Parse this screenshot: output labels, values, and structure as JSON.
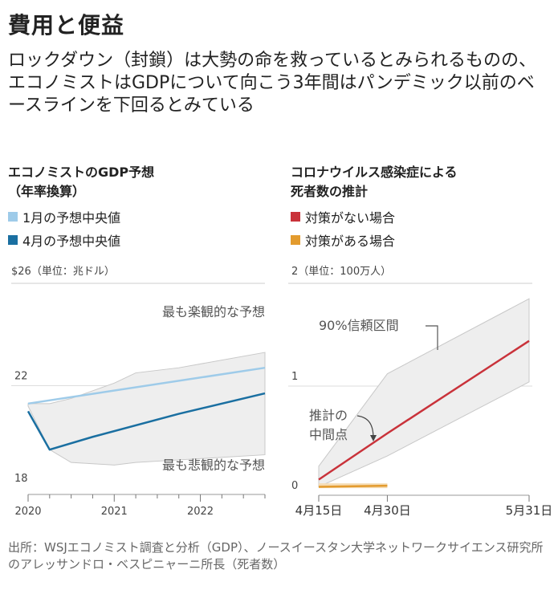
{
  "title": "費用と便益",
  "subtitle": "ロックダウン（封鎖）は大勢の命を救っているとみられるものの、エコノミストはGDPについて向こう3年間はパンデミック以前のベースラインを下回るとみている",
  "source": "出所：WSJエコノミスト調査と分析（GDP）、ノースイースタン大学ネットワークサイエンス研究所のアレッサンドロ・ベスピニャーニ所長（死者数）",
  "left": {
    "title_line1": "エコノミストのGDP予想",
    "title_line2": "（年率換算）",
    "legend": [
      {
        "label": "1月の予想中央値",
        "color": "#9ecbe9"
      },
      {
        "label": "4月の予想中央値",
        "color": "#1a6fa1"
      }
    ],
    "y_top_label": "$26（単位：兆ドル）",
    "annotation_high": "最も楽観的な予想",
    "annotation_low": "最も悲観的な予想"
  },
  "right": {
    "title_line1": "コロナウイルス感染症による",
    "title_line2": "死者数の推計",
    "legend": [
      {
        "label": "対策がない場合",
        "color": "#c9323a"
      },
      {
        "label": "対策がある場合",
        "color": "#e39b2e"
      }
    ],
    "y_top_label": "2（単位：100万人）",
    "annotation_ci": "90%信頼区間",
    "annotation_mid_line1": "推計の",
    "annotation_mid_line2": "中間点"
  },
  "chart_data": [
    {
      "type": "line",
      "title": "エコノミストのGDP予想（年率換算）",
      "ylabel": "$26（単位：兆ドル）",
      "ylim": [
        18,
        26
      ],
      "y_ticks": [
        "22",
        "18"
      ],
      "x_ticks": [
        "2020",
        "2021",
        "2022"
      ],
      "xlim": [
        2020.0,
        2022.75
      ],
      "series": [
        {
          "name": "1月の予想中央値",
          "color": "#9ecbe9",
          "x": [
            2020.0,
            2022.75
          ],
          "y": [
            21.3,
            22.7
          ]
        },
        {
          "name": "4月の予想中央値",
          "color": "#1a6fa1",
          "x": [
            2020.0,
            2020.25,
            2020.75,
            2021.75,
            2022.75
          ],
          "y": [
            21.0,
            19.5,
            20.0,
            20.9,
            21.7
          ]
        }
      ],
      "band": {
        "x": [
          2020.0,
          2020.25,
          2020.5,
          2021.0,
          2021.25,
          2021.75,
          2022.75
        ],
        "upper": [
          21.3,
          21.3,
          21.5,
          22.1,
          22.5,
          22.7,
          23.3
        ],
        "lower": [
          21.2,
          19.5,
          19.0,
          18.9,
          19.0,
          19.1,
          19.3
        ]
      }
    },
    {
      "type": "line",
      "title": "コロナウイルス感染症による死者数の推計",
      "ylabel": "2（単位：100万人）",
      "ylim": [
        0,
        2
      ],
      "y_ticks": [
        "1",
        "0"
      ],
      "x_ticks": [
        "4月15日",
        "4月30日",
        "5月31日"
      ],
      "x_day_range": [
        0,
        46
      ],
      "x_tick_days": [
        0,
        15,
        46
      ],
      "series": [
        {
          "name": "対策がない場合",
          "color": "#c9323a",
          "x_days": [
            0,
            15,
            46
          ],
          "y": [
            0.09,
            0.54,
            1.44
          ]
        },
        {
          "name": "対策がある場合",
          "color": "#e39b2e",
          "x_days": [
            0,
            15
          ],
          "y": [
            0.02,
            0.03
          ]
        }
      ],
      "band": {
        "x_days": [
          0,
          15,
          46
        ],
        "upper": [
          0.22,
          1.12,
          1.85
        ],
        "lower": [
          0.02,
          0.32,
          1.04
        ]
      }
    }
  ]
}
